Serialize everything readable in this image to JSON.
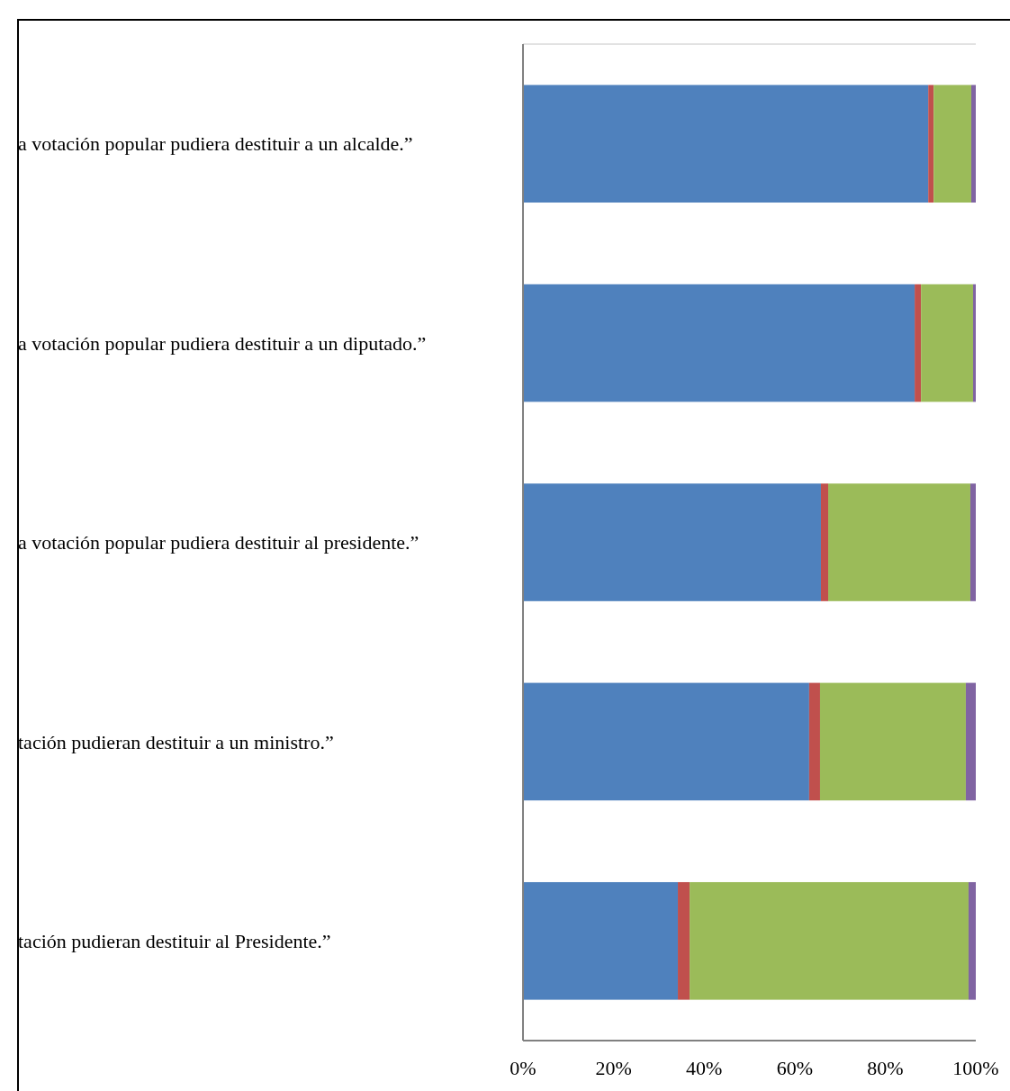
{
  "chart_data": {
    "type": "bar",
    "orientation": "horizontal",
    "stacked": true,
    "categories": [
      "a votación popular pudiera destituir a un alcalde.”",
      "a votación popular pudiera destituir a un diputado.”",
      "a votación popular pudiera destituir al presidente.”",
      "tación pudieran destituir a un ministro.”",
      "tación pudieran destituir al Presidente.”"
    ],
    "series": [
      {
        "color": "#4f81bd",
        "values": [
          89.5,
          86.5,
          65.8,
          63.2,
          34.2
        ]
      },
      {
        "color": "#c0504d",
        "values": [
          1.2,
          1.4,
          1.6,
          2.4,
          2.6
        ]
      },
      {
        "color": "#9bbb59",
        "values": [
          8.3,
          11.5,
          31.4,
          32.2,
          61.6
        ]
      },
      {
        "color": "#8064a2",
        "values": [
          1.0,
          0.6,
          1.2,
          2.2,
          1.6
        ]
      }
    ],
    "xlim": [
      0,
      100
    ],
    "xticks": [
      {
        "value": 0,
        "label": "0%"
      },
      {
        "value": 20,
        "label": "20%"
      },
      {
        "value": 40,
        "label": "40%"
      },
      {
        "value": 60,
        "label": "60%"
      },
      {
        "value": 80,
        "label": "80%"
      },
      {
        "value": 100,
        "label": "100%"
      }
    ],
    "grid": false
  }
}
